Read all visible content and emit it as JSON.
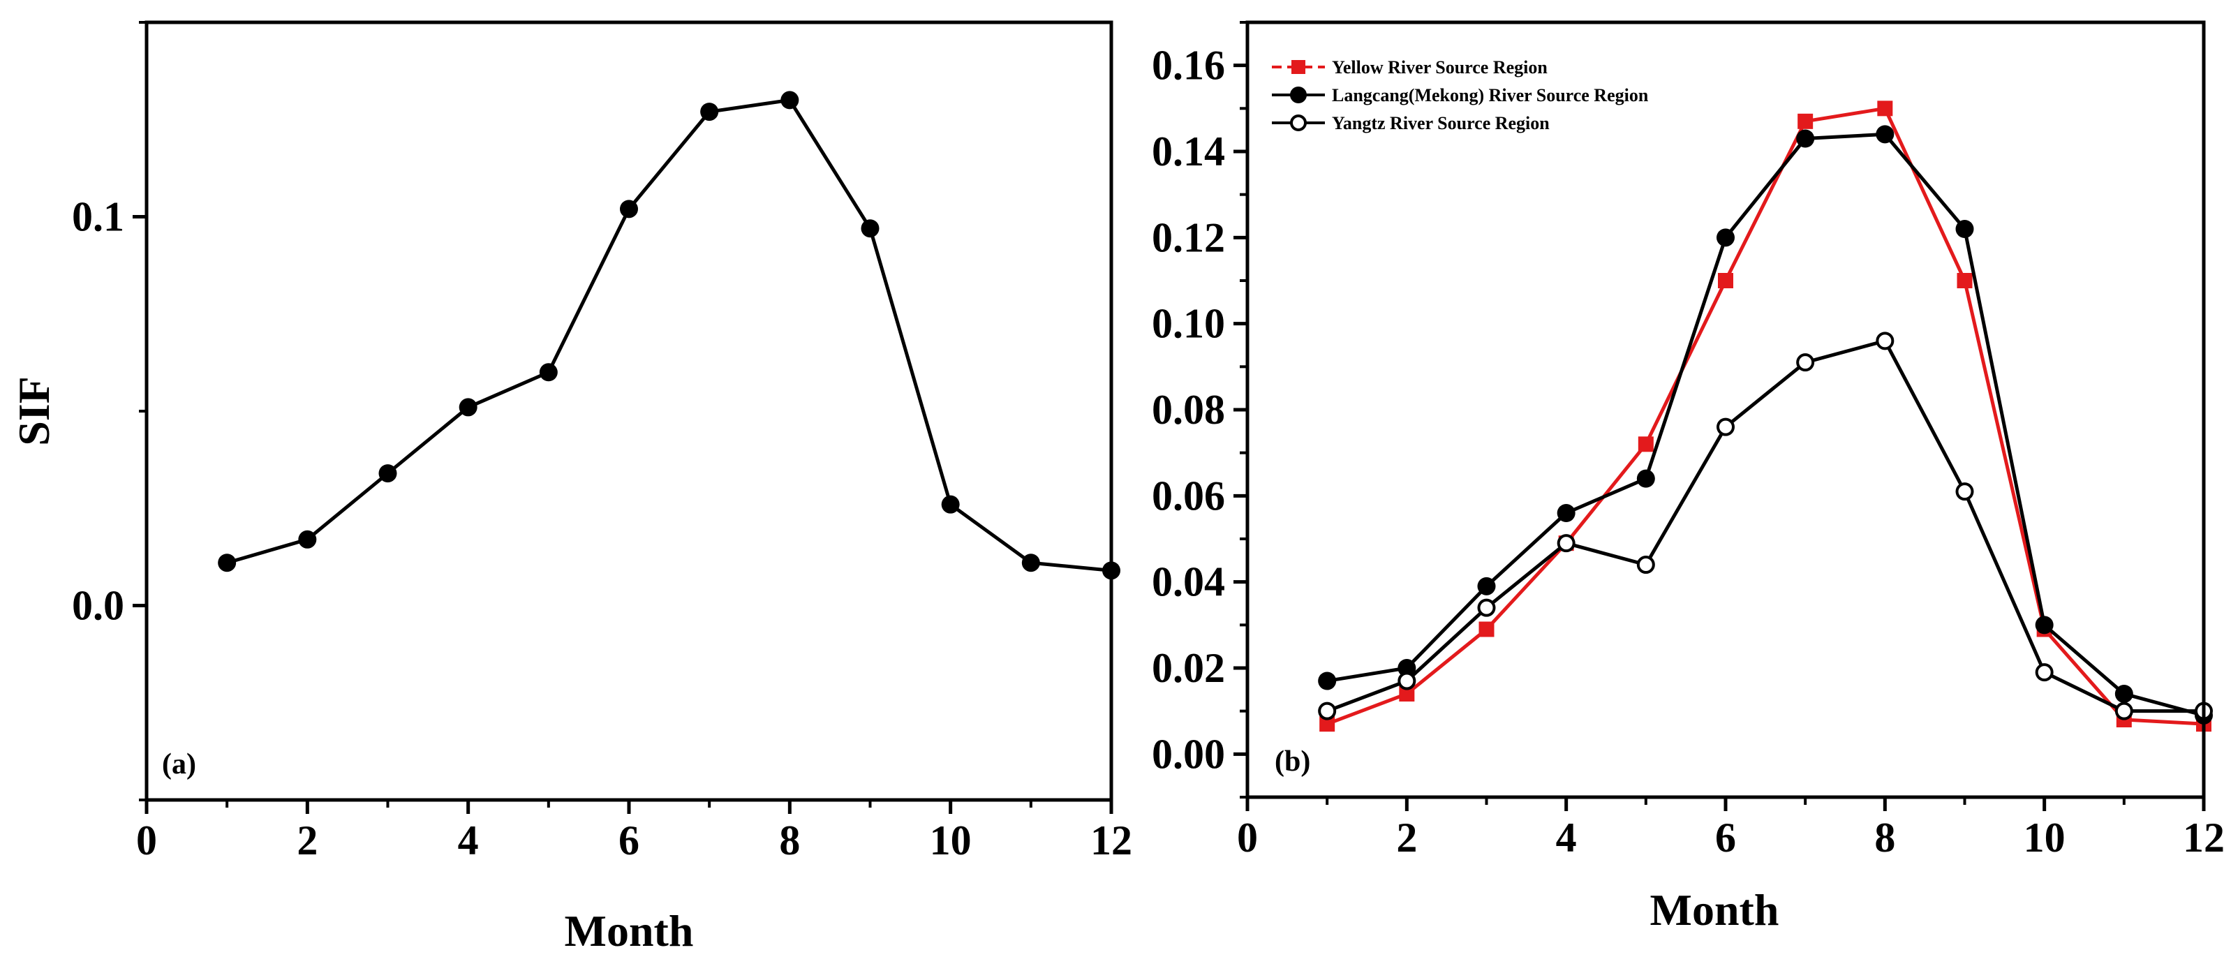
{
  "chart_data": [
    {
      "type": "line",
      "panel_label": "(a)",
      "xlabel": "Month",
      "ylabel": "SIF",
      "xlim": [
        0,
        12
      ],
      "ylim": [
        -0.05,
        0.15
      ],
      "xticks": [
        0,
        2,
        4,
        6,
        8,
        10,
        12
      ],
      "yticks": [
        0.0,
        0.1
      ],
      "ytick_labels": [
        "0.0",
        "0.1"
      ],
      "series": [
        {
          "name": "SIF",
          "color": "#000000",
          "marker": "filled-circle",
          "x": [
            1,
            2,
            3,
            4,
            5,
            6,
            7,
            8,
            9,
            10,
            11,
            12
          ],
          "values": [
            0.011,
            0.017,
            0.034,
            0.051,
            0.06,
            0.102,
            0.127,
            0.13,
            0.097,
            0.026,
            0.011,
            0.009
          ]
        }
      ]
    },
    {
      "type": "line",
      "panel_label": "(b)",
      "xlabel": "Month",
      "ylabel": "",
      "xlim": [
        0,
        12
      ],
      "ylim": [
        -0.01,
        0.17
      ],
      "xticks": [
        0,
        2,
        4,
        6,
        8,
        10,
        12
      ],
      "yticks": [
        0,
        0.02,
        0.04,
        0.06,
        0.08,
        0.1,
        0.12,
        0.14,
        0.16
      ],
      "ytick_labels": [
        "0.00",
        "0.02",
        "0.04",
        "0.06",
        "0.08",
        "0.10",
        "0.12",
        "0.14",
        "0.16"
      ],
      "legend_position": "top-left",
      "series": [
        {
          "name": "Yellow River Source Region",
          "color": "#e31a1c",
          "marker": "filled-square",
          "x": [
            1,
            2,
            3,
            4,
            5,
            6,
            7,
            8,
            9,
            10,
            11,
            12
          ],
          "values": [
            0.007,
            0.014,
            0.029,
            0.049,
            0.072,
            0.11,
            0.147,
            0.15,
            0.11,
            0.029,
            0.008,
            0.007
          ]
        },
        {
          "name": "Langcang(Mekong) River Source Region",
          "color": "#000000",
          "marker": "filled-circle",
          "x": [
            1,
            2,
            3,
            4,
            5,
            6,
            7,
            8,
            9,
            10,
            11,
            12
          ],
          "values": [
            0.017,
            0.02,
            0.039,
            0.056,
            0.064,
            0.12,
            0.143,
            0.144,
            0.122,
            0.03,
            0.014,
            0.009
          ]
        },
        {
          "name": "Yangtz River Source Region",
          "color": "#000000",
          "marker": "open-circle",
          "x": [
            1,
            2,
            3,
            4,
            5,
            6,
            7,
            8,
            9,
            10,
            11,
            12
          ],
          "values": [
            0.01,
            0.017,
            0.034,
            0.049,
            0.044,
            0.076,
            0.091,
            0.096,
            0.061,
            0.019,
            0.01,
            0.01
          ]
        }
      ]
    }
  ]
}
